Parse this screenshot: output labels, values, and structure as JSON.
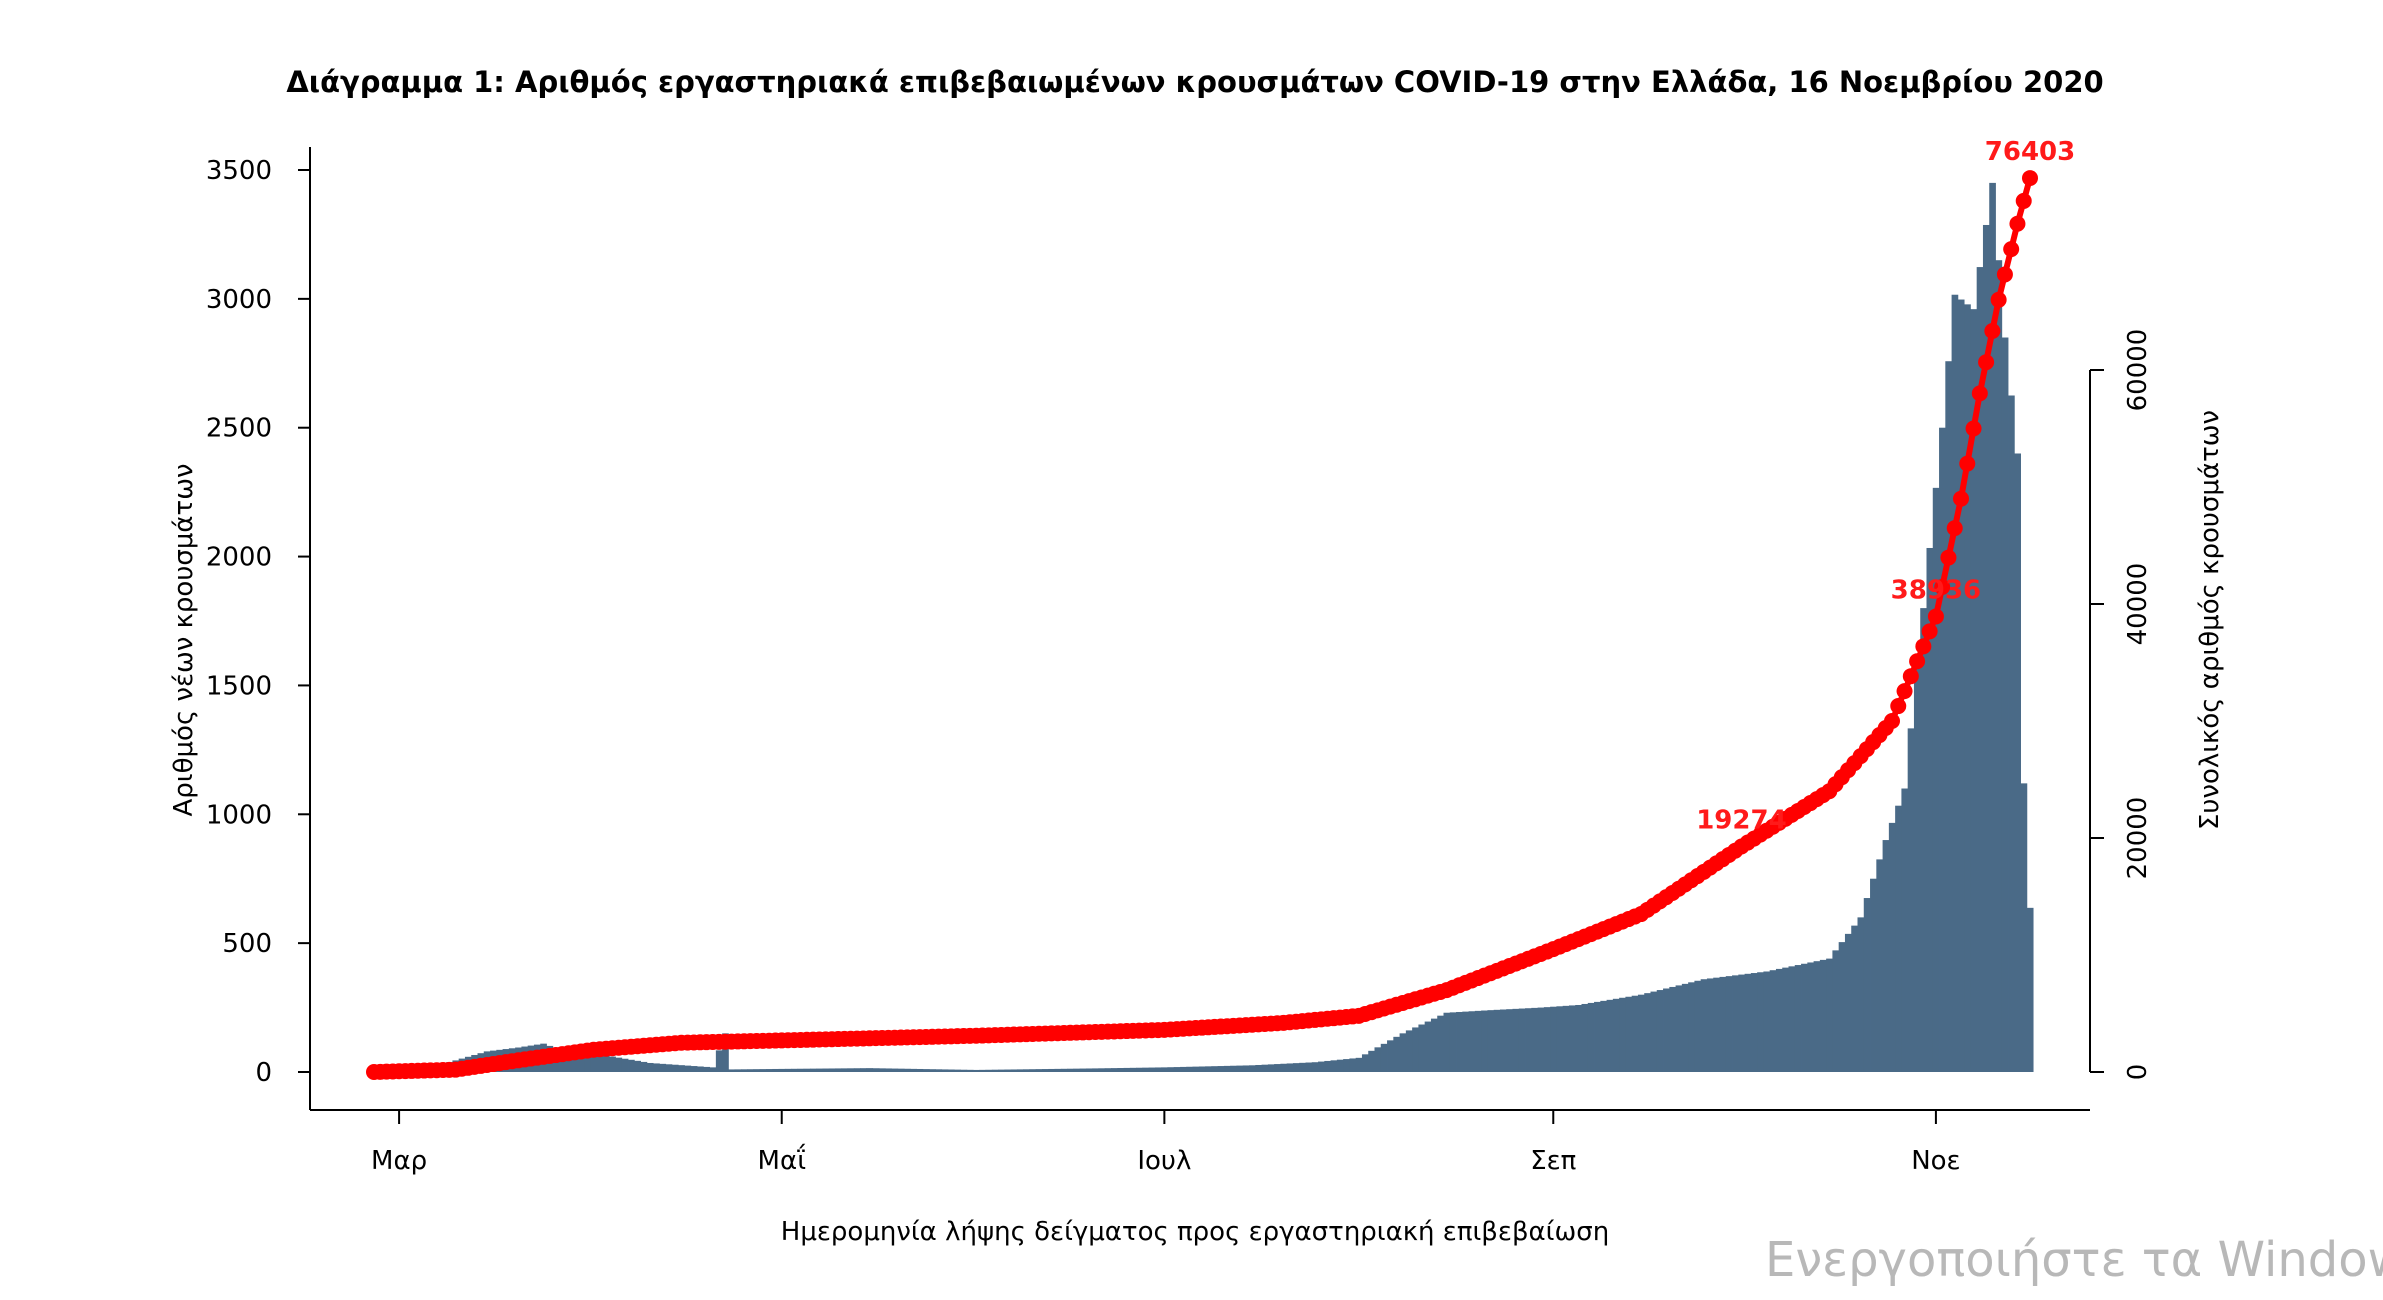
{
  "chart_data": {
    "type": "bar+line",
    "title": "Διάγραμμα 1: Αριθμός εργαστηριακά επιβεβαιωμένων κρουσμάτων COVID-19 στην Ελλάδα, 16 Νοεμβρίου 2020",
    "xlabel": "Ημερομηνία λήψης δείγματος προς εργαστηριακή επιβεβαίωση",
    "ylabel_left": "Αριθμός νέων κρουσμάτων",
    "ylabel_right": "Συνολικός αριθμός κρουσμάτων",
    "x_range": [
      "2020-02-26",
      "2020-11-16"
    ],
    "x_ticks": [
      {
        "label": "Μαρ",
        "date": "2020-03-01"
      },
      {
        "label": "Μαΐ",
        "date": "2020-05-01"
      },
      {
        "label": "Ιουλ",
        "date": "2020-07-01"
      },
      {
        "label": "Σεπ",
        "date": "2020-09-01"
      },
      {
        "label": "Νοε",
        "date": "2020-11-01"
      }
    ],
    "ylim_left": [
      0,
      3500
    ],
    "yticks_left": [
      0,
      500,
      1000,
      1500,
      2000,
      2500,
      3000,
      3500
    ],
    "ylim_right": [
      0,
      76403
    ],
    "yticks_right": [
      0,
      20000,
      40000,
      60000
    ],
    "bar_series": {
      "color": "#4a6a87",
      "anchors": [
        [
          "2020-02-26",
          4
        ],
        [
          "2020-03-05",
          12
        ],
        [
          "2020-03-10",
          45
        ],
        [
          "2020-03-15",
          80
        ],
        [
          "2020-03-20",
          95
        ],
        [
          "2020-03-24",
          110
        ],
        [
          "2020-03-28",
          75
        ],
        [
          "2020-04-02",
          68
        ],
        [
          "2020-04-10",
          35
        ],
        [
          "2020-04-20",
          18
        ],
        [
          "2020-04-22",
          150
        ],
        [
          "2020-04-23",
          10
        ],
        [
          "2020-05-01",
          12
        ],
        [
          "2020-05-15",
          15
        ],
        [
          "2020-06-01",
          8
        ],
        [
          "2020-06-20",
          14
        ],
        [
          "2020-07-01",
          18
        ],
        [
          "2020-07-15",
          26
        ],
        [
          "2020-07-25",
          38
        ],
        [
          "2020-08-01",
          55
        ],
        [
          "2020-08-08",
          150
        ],
        [
          "2020-08-15",
          230
        ],
        [
          "2020-08-22",
          240
        ],
        [
          "2020-08-30",
          250
        ],
        [
          "2020-09-05",
          260
        ],
        [
          "2020-09-15",
          300
        ],
        [
          "2020-09-25",
          360
        ],
        [
          "2020-10-05",
          390
        ],
        [
          "2020-10-15",
          440
        ],
        [
          "2020-10-20",
          600
        ],
        [
          "2020-10-24",
          900
        ],
        [
          "2020-10-27",
          1100
        ],
        [
          "2020-10-30",
          1800
        ],
        [
          "2020-11-02",
          2500
        ],
        [
          "2020-11-04",
          3016
        ],
        [
          "2020-11-07",
          2960
        ],
        [
          "2020-11-10",
          3450
        ],
        [
          "2020-11-12",
          2850
        ],
        [
          "2020-11-14",
          2400
        ],
        [
          "2020-11-15",
          1120
        ],
        [
          "2020-11-16",
          637
        ]
      ]
    },
    "cumulative_series": {
      "color": "#ff0000",
      "anchors": [
        [
          "2020-02-26",
          0
        ],
        [
          "2020-03-10",
          200
        ],
        [
          "2020-03-20",
          1000
        ],
        [
          "2020-04-01",
          1900
        ],
        [
          "2020-04-15",
          2500
        ],
        [
          "2020-05-01",
          2700
        ],
        [
          "2020-06-01",
          3100
        ],
        [
          "2020-07-01",
          3600
        ],
        [
          "2020-07-20",
          4200
        ],
        [
          "2020-08-01",
          4800
        ],
        [
          "2020-08-15",
          7000
        ],
        [
          "2020-09-01",
          10500
        ],
        [
          "2020-09-15",
          13500
        ],
        [
          "2020-10-01",
          19274
        ],
        [
          "2020-10-15",
          24000
        ],
        [
          "2020-10-25",
          30000
        ],
        [
          "2020-11-01",
          38936
        ],
        [
          "2020-11-05",
          49000
        ],
        [
          "2020-11-08",
          58000
        ],
        [
          "2020-11-11",
          66000
        ],
        [
          "2020-11-14",
          72500
        ],
        [
          "2020-11-16",
          76403
        ]
      ],
      "annotations": [
        {
          "date": "2020-10-01",
          "value": 19274,
          "label": "19274"
        },
        {
          "date": "2020-11-01",
          "value": 38936,
          "label": "38936"
        },
        {
          "date": "2020-11-16",
          "value": 76403,
          "label": "76403"
        }
      ]
    }
  },
  "watermark": "Ενεργοποιήστε τα Windows"
}
